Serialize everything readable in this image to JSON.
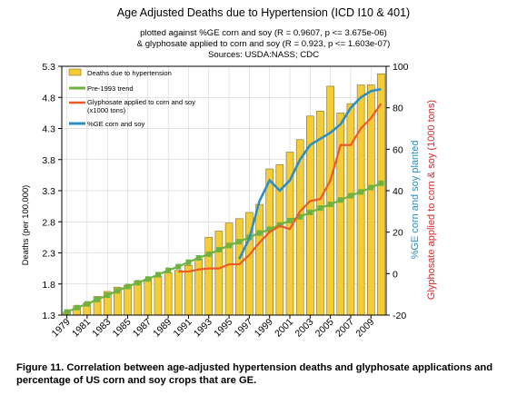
{
  "chart_data": {
    "type": "bar+line",
    "title": "Age Adjusted Deaths due to Hypertension (ICD I10 & 401)",
    "subtitle_lines": [
      "plotted against %GE corn and soy (R = 0.9607, p <= 3.675e-06)",
      "& glyphosate applied to corn and soy (R = 0.923, p <= 1.603e-07)",
      "Sources: USDA:NASS; CDC"
    ],
    "ylabel_left": "Deaths (per 100,000)",
    "ylabel_right_blue": "%GE corn and soy planted",
    "ylabel_right_red": "Glyphosate applied to corn & soy (1000 tons)",
    "ylim_left": [
      1.3,
      5.3
    ],
    "ylim_right": [
      -20,
      100
    ],
    "left_ticks": [
      "5.3",
      "4.8",
      "4.3",
      "3.8",
      "3.3",
      "2.8",
      "2.3",
      "1.8",
      "1.3"
    ],
    "right_ticks": [
      "100",
      "80",
      "60",
      "40",
      "20",
      "0",
      "-20"
    ],
    "x_tick_labels": [
      "1979",
      "1981",
      "1983",
      "1985",
      "1987",
      "1989",
      "1991",
      "1993",
      "1995",
      "1997",
      "1999",
      "2001",
      "2003",
      "2005",
      "2007",
      "2009"
    ],
    "legend": {
      "position": "top-left",
      "deaths": "Deaths due to hypertension",
      "trend": "Pre-1993 trend",
      "glyphosate_line1": "Glyphosate applied to corn and soy",
      "glyphosate_line2": "(x1000 tons)",
      "ge": "%GE corn and soy"
    },
    "colors": {
      "bar_fill": "#f4cc37",
      "bar_stroke": "#6b5a10",
      "trend": "#6cb33f",
      "glyphosate": "#ef5a24",
      "ge": "#2b8fc4",
      "right_axis_blue": "#2b8fc4",
      "right_axis_red": "#d62b2b"
    },
    "grid": true,
    "years": [
      1979,
      1980,
      1981,
      1982,
      1983,
      1984,
      1985,
      1986,
      1987,
      1988,
      1989,
      1990,
      1991,
      1992,
      1993,
      1994,
      1995,
      1996,
      1997,
      1998,
      1999,
      2000,
      2001,
      2002,
      2003,
      2004,
      2005,
      2006,
      2007,
      2008,
      2009,
      2010
    ],
    "deaths": [
      1.35,
      1.45,
      1.5,
      1.6,
      1.68,
      1.75,
      1.78,
      1.85,
      1.88,
      1.93,
      1.98,
      2.02,
      2.1,
      2.2,
      2.55,
      2.65,
      2.78,
      2.85,
      2.95,
      3.08,
      3.65,
      3.72,
      3.92,
      4.12,
      4.5,
      4.58,
      4.98,
      4.55,
      4.7,
      5.0,
      5.0,
      5.18
    ],
    "trend": [
      1.35,
      1.42,
      1.48,
      1.55,
      1.62,
      1.69,
      1.76,
      1.82,
      1.88,
      1.95,
      2.02,
      2.08,
      2.15,
      2.22,
      2.28,
      2.35,
      2.42,
      2.48,
      2.55,
      2.62,
      2.68,
      2.75,
      2.82,
      2.88,
      2.95,
      3.02,
      3.08,
      3.15,
      3.22,
      3.28,
      3.35,
      3.42
    ],
    "glyphosate_years": [
      1990,
      1991,
      1992,
      1993,
      1994,
      1995,
      1996,
      1997,
      1998,
      1999,
      2000,
      2001,
      2002,
      2003,
      2004,
      2005,
      2006,
      2007,
      2008,
      2009,
      2010
    ],
    "glyphosate": [
      1,
      1,
      2,
      2.5,
      2.5,
      4.5,
      4.5,
      9,
      15,
      20,
      23,
      21.5,
      30,
      35,
      36,
      45,
      62,
      62,
      70,
      75,
      82
    ],
    "ge_years": [
      1996,
      1997,
      1998,
      1999,
      2000,
      2001,
      2002,
      2003,
      2004,
      2005,
      2006,
      2007,
      2008,
      2009,
      2010
    ],
    "ge": [
      7,
      17,
      35,
      45,
      40,
      45,
      55,
      62,
      65,
      68,
      72,
      80,
      85,
      88,
      89
    ]
  },
  "caption": "Figure 11. Correlation between age-adjusted hypertension deaths and glyphosate applications and percentage of US corn and soy crops that are GE."
}
